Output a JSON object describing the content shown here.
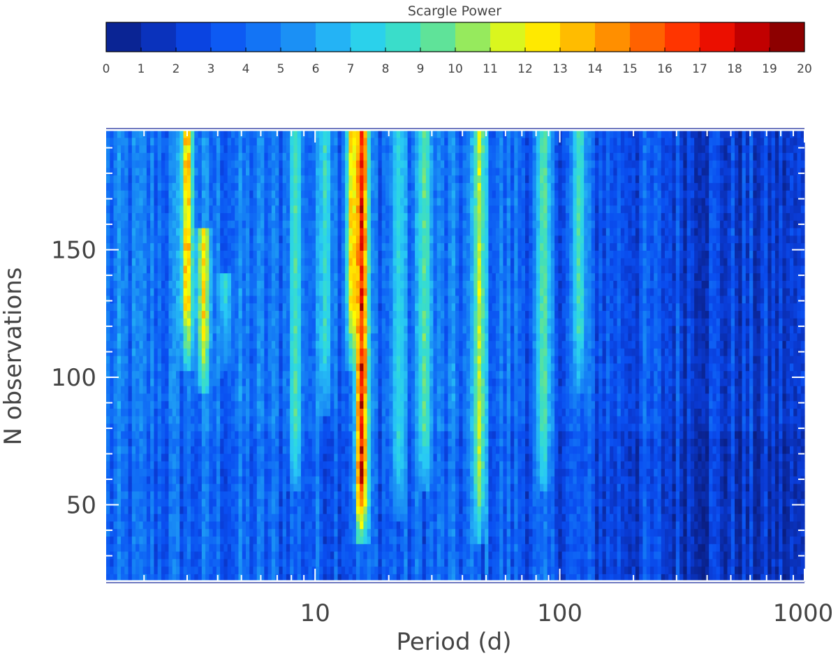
{
  "chart_data": {
    "type": "heatmap",
    "title": "",
    "xlabel": "Period (d)",
    "ylabel": "N observations",
    "x_scale": "log",
    "xlim": [
      1.4,
      1000
    ],
    "ylim": [
      20,
      197
    ],
    "x_ticks": [
      10,
      100,
      1000
    ],
    "y_ticks": [
      50,
      100,
      150
    ],
    "grid": false,
    "colorbar": {
      "title": "Scargle Power",
      "placement": "top",
      "min": 0,
      "max": 20,
      "tick_labels": [
        "0",
        "1",
        "2",
        "3",
        "4",
        "5",
        "6",
        "7",
        "8",
        "9",
        "10",
        "11",
        "12",
        "13",
        "14",
        "15",
        "16",
        "17",
        "18",
        "19",
        "20"
      ],
      "colors": [
        "#0a1e82",
        "#0a2aa5",
        "#0a3ad2",
        "#0a4ef0",
        "#0f66f5",
        "#1682f5",
        "#1f9ef5",
        "#28c8f5",
        "#2ed9e0",
        "#46e0b4",
        "#78e67d",
        "#b4ed3c",
        "#ffff00",
        "#ffd200",
        "#ffa500",
        "#ff7800",
        "#ff4b00",
        "#ff1e00",
        "#d70000",
        "#aa0000",
        "#700000"
      ]
    },
    "features": [
      {
        "period": 15.5,
        "power_peak": 17.5,
        "n_min": 40,
        "n_max": 197
      },
      {
        "period": 3.0,
        "power_peak": 13.5,
        "n_min": 110,
        "n_max": 197
      },
      {
        "period": 3.5,
        "power_peak": 12.5,
        "n_min": 100,
        "n_max": 160
      },
      {
        "period": 14.2,
        "power_peak": 13.0,
        "n_min": 110,
        "n_max": 197
      },
      {
        "period": 47,
        "power_peak": 11.0,
        "n_min": 40,
        "n_max": 197
      },
      {
        "period": 28,
        "power_peak": 9.5,
        "n_min": 60,
        "n_max": 197
      },
      {
        "period": 86,
        "power_peak": 9.5,
        "n_min": 60,
        "n_max": 197
      },
      {
        "period": 120,
        "power_peak": 9.0,
        "n_min": 100,
        "n_max": 197
      },
      {
        "period": 8.3,
        "power_peak": 9.0,
        "n_min": 60,
        "n_max": 197
      },
      {
        "period": 11,
        "power_peak": 8.5,
        "n_min": 90,
        "n_max": 197
      },
      {
        "period": 22,
        "power_peak": 8.0,
        "n_min": 50,
        "n_max": 197
      },
      {
        "period": 4.3,
        "power_peak": 8.0,
        "n_min": 110,
        "n_max": 140
      }
    ]
  }
}
